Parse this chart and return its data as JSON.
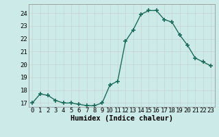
{
  "x": [
    0,
    1,
    2,
    3,
    4,
    5,
    6,
    7,
    8,
    9,
    10,
    11,
    12,
    13,
    14,
    15,
    16,
    17,
    18,
    19,
    20,
    21,
    22,
    23
  ],
  "y": [
    17.0,
    17.7,
    17.6,
    17.2,
    17.0,
    17.0,
    16.9,
    16.8,
    16.8,
    17.0,
    18.4,
    18.7,
    21.8,
    22.7,
    23.9,
    24.2,
    24.2,
    23.5,
    23.3,
    22.3,
    21.5,
    20.5,
    20.2,
    19.9
  ],
  "xlabel": "Humidex (Indice chaleur)",
  "ylim_min": 16.7,
  "ylim_max": 24.7,
  "xlim_min": -0.5,
  "xlim_max": 23.5,
  "yticks": [
    17,
    18,
    19,
    20,
    21,
    22,
    23,
    24
  ],
  "xticks": [
    0,
    1,
    2,
    3,
    4,
    5,
    6,
    7,
    8,
    9,
    10,
    11,
    12,
    13,
    14,
    15,
    16,
    17,
    18,
    19,
    20,
    21,
    22,
    23
  ],
  "line_color": "#1a6b5a",
  "marker": "+",
  "marker_size": 4.0,
  "marker_lw": 1.2,
  "line_width": 1.0,
  "bg_color": "#cceae7",
  "grid_color": "#c8d8d5",
  "xlabel_fontsize": 7.5,
  "tick_fontsize": 6.5,
  "font_family": "monospace"
}
